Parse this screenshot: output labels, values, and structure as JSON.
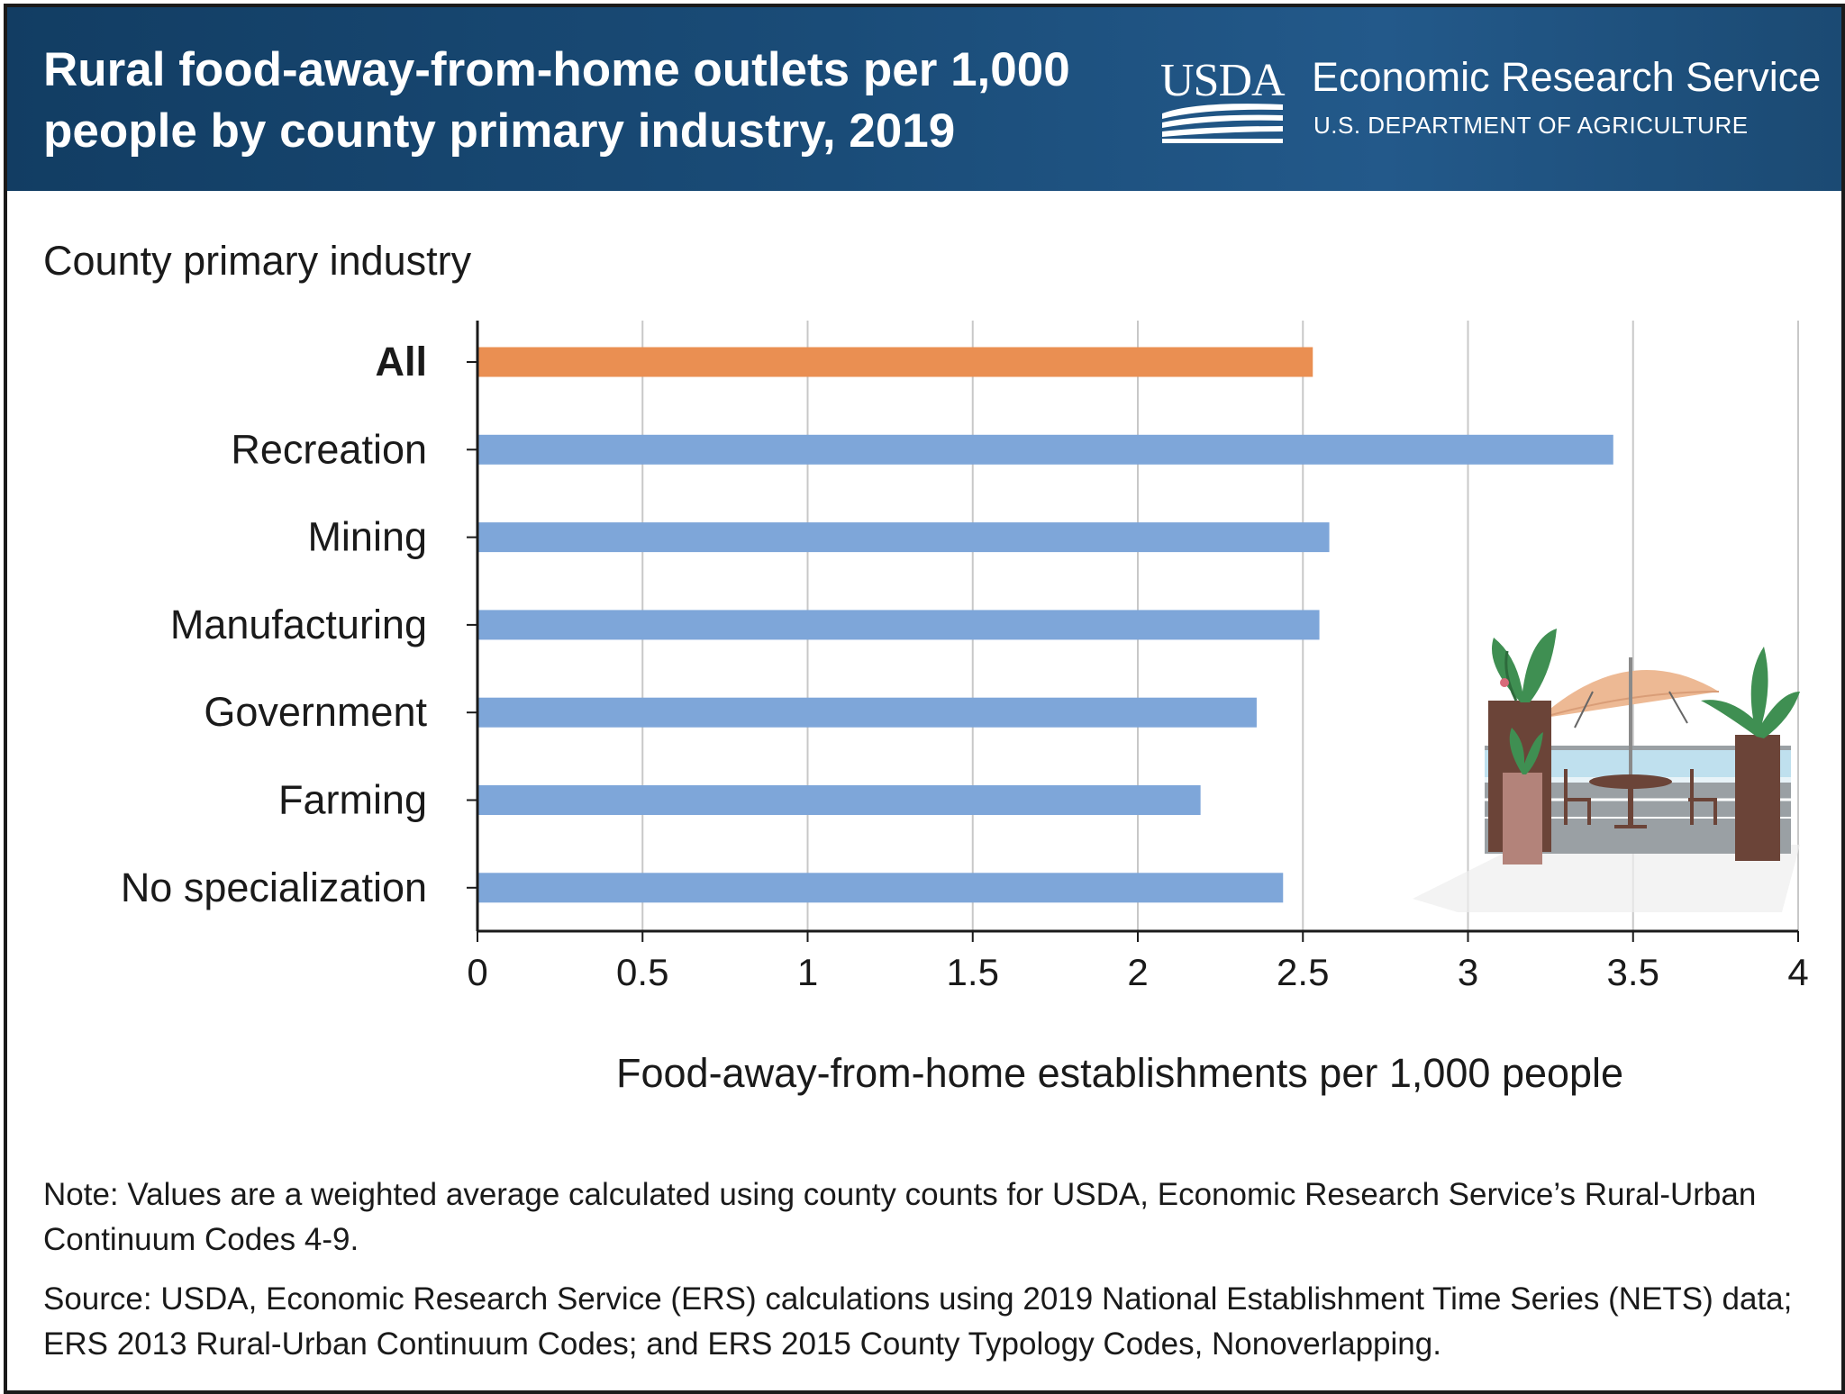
{
  "header": {
    "title": "Rural food-away-from-home outlets per 1,000 people by county primary industry, 2019",
    "logo_text": "USDA",
    "agency": "Economic Research Service",
    "department": "U.S. DEPARTMENT OF AGRICULTURE"
  },
  "chart_data": {
    "type": "bar",
    "orientation": "horizontal",
    "ylabel": "County primary industry",
    "xlabel": "Food-away-from-home establishments per 1,000 people",
    "categories": [
      "All",
      "Recreation",
      "Mining",
      "Manufacturing",
      "Government",
      "Farming",
      "No specialization"
    ],
    "values": [
      2.53,
      3.44,
      2.58,
      2.55,
      2.36,
      2.19,
      2.44
    ],
    "bar_colors": [
      "#ea8f52",
      "#7ea6d9",
      "#7ea6d9",
      "#7ea6d9",
      "#7ea6d9",
      "#7ea6d9",
      "#7ea6d9"
    ],
    "highlight_category": "All",
    "xlim": [
      0,
      4
    ],
    "xticks": [
      0,
      0.5,
      1,
      1.5,
      2,
      2.5,
      3,
      3.5,
      4
    ],
    "xtick_labels": [
      "0",
      "0.5",
      "1",
      "1.5",
      "2",
      "2.5",
      "3",
      "3.5",
      "4"
    ],
    "grid": "vertical",
    "grid_color": "#c8c8c8"
  },
  "illustration": {
    "name": "outdoor-cafe-illustration",
    "colors": {
      "pot_dark": "#6b4438",
      "pot_light": "#b3837a",
      "umbrella": "#edb994",
      "leaf": "#3f8f52",
      "sea": "#bfe0ee"
    }
  },
  "notes": {
    "note": "Note: Values are a weighted average calculated using county counts for USDA, Economic Research Service’s Rural-Urban Continuum Codes 4-9.",
    "source": "Source: USDA, Economic Research Service (ERS) calculations using 2019 National Establishment Time Series (NETS) data; ERS 2013 Rural-Urban Continuum Codes; and ERS 2015 County Typology Codes, Nonoverlapping."
  }
}
